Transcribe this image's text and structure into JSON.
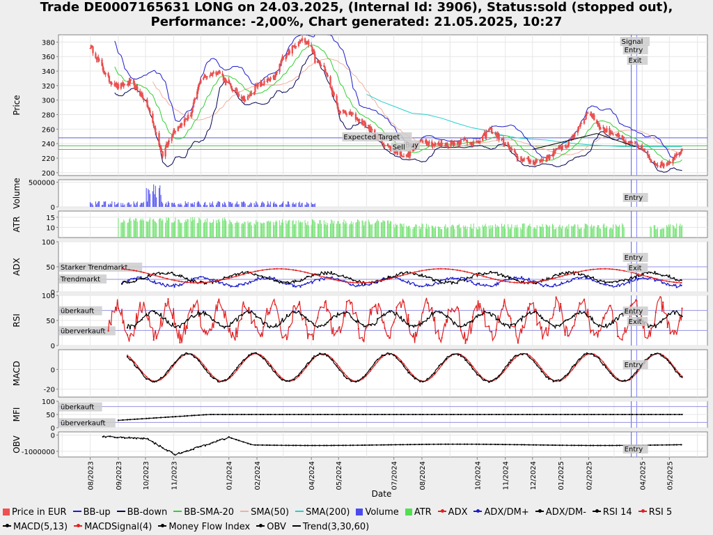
{
  "title_line1": "Trade DE0007165631 LONG on 24.03.2025, (Internal Id: 3906), Status:sold (stopped out),",
  "title_line2": "Performance: -2,00%, Chart generated: 21.05.2025, 10:27",
  "chart_data": {
    "type": "line",
    "xlabel": "Date",
    "x_ticks": [
      "08/2023",
      "09/2023",
      "10/2023",
      "11/2023",
      "01/2024",
      "02/2024",
      "04/2024",
      "05/2024",
      "07/2024",
      "08/2024",
      "10/2024",
      "11/2024",
      "12/2024",
      "01/2025",
      "02/2025",
      "04/2025",
      "05/2025"
    ],
    "price": {
      "ylabel": "Price",
      "yticks": [
        200,
        220,
        240,
        260,
        280,
        300,
        320,
        340,
        360,
        380
      ],
      "ylim": [
        196,
        390
      ],
      "dates": [
        "2023-08-01",
        "2023-08-10",
        "2023-08-20",
        "2023-09-01",
        "2023-09-15",
        "2023-10-01",
        "2023-10-10",
        "2023-10-20",
        "2023-11-01",
        "2023-11-20",
        "2023-12-01",
        "2023-12-20",
        "2024-01-05",
        "2024-01-20",
        "2024-02-01",
        "2024-02-20",
        "2024-03-01",
        "2024-03-10",
        "2024-03-20",
        "2024-04-01",
        "2024-04-05",
        "2024-04-15",
        "2024-05-01",
        "2024-05-15",
        "2024-06-01",
        "2024-06-15",
        "2024-07-01",
        "2024-07-15",
        "2024-08-01",
        "2024-08-15",
        "2024-09-01",
        "2024-09-15",
        "2024-10-01",
        "2024-10-15",
        "2024-11-01",
        "2024-11-15",
        "2024-12-01",
        "2024-12-15",
        "2025-01-01",
        "2025-01-10",
        "2025-01-20",
        "2025-02-01",
        "2025-02-15",
        "2025-03-01",
        "2025-03-15",
        "2025-03-24",
        "2025-04-01",
        "2025-04-08",
        "2025-04-20",
        "2025-05-01",
        "2025-05-15"
      ],
      "close": [
        375,
        355,
        330,
        318,
        325,
        300,
        265,
        225,
        258,
        280,
        330,
        340,
        315,
        300,
        320,
        330,
        360,
        370,
        385,
        375,
        355,
        345,
        285,
        280,
        265,
        245,
        230,
        222,
        246,
        238,
        240,
        245,
        240,
        260,
        240,
        220,
        215,
        218,
        235,
        240,
        262,
        285,
        260,
        255,
        240,
        240,
        233,
        220,
        210,
        215,
        232
      ],
      "series_names": [
        "Price in EUR",
        "BB-up",
        "BB-down",
        "BB-SMA-20",
        "SMA(50)",
        "SMA(200)",
        "Trend(3,30,60)"
      ],
      "sma200_start": "2024-06-01",
      "sma200_values": [
        308,
        298,
        290,
        282,
        280,
        275,
        268,
        262,
        258,
        252,
        248,
        246,
        245,
        242,
        240,
        238,
        237,
        236,
        236,
        236,
        236,
        236
      ],
      "hlines": [
        {
          "y": 248,
          "color": "#5a5ae0"
        },
        {
          "y": 237,
          "color": "#40c040"
        },
        {
          "y": 232,
          "color": "#e07070"
        }
      ],
      "annotations": [
        "Expected Target",
        "Buy",
        "Sell",
        "Signal",
        "Entry",
        "Exit"
      ]
    },
    "volume": {
      "ylabel": "Volume",
      "yticks": [
        0,
        500000
      ],
      "ylim": [
        0,
        550000
      ]
    },
    "atr": {
      "ylabel": "ATR",
      "yticks": [
        10,
        15
      ],
      "ylim": [
        5,
        18
      ]
    },
    "adx": {
      "ylabel": "ADX",
      "yticks": [
        0,
        50,
        100
      ],
      "ylim": [
        0,
        100
      ],
      "series": [
        "ADX",
        "ADX/DM+",
        "ADX/DM-"
      ],
      "lines": [
        {
          "y": 50,
          "label": "Starker Trendmarkt"
        },
        {
          "y": 25,
          "label": "Trendmarkt"
        }
      ]
    },
    "rsi": {
      "ylabel": "RSI",
      "yticks": [
        0,
        50,
        100
      ],
      "ylim": [
        0,
        100
      ],
      "series": [
        "RSI 14",
        "RSI 5"
      ],
      "lines": [
        {
          "y": 70,
          "label": "überkauft"
        },
        {
          "y": 30,
          "label": "überverkauft"
        }
      ]
    },
    "macd": {
      "ylabel": "MACD",
      "yticks": [
        -20,
        0
      ],
      "ylim": [
        -28,
        20
      ],
      "series": [
        "MACD(5,13)",
        "MACDSignal(4)"
      ]
    },
    "mfi": {
      "ylabel": "MFI",
      "yticks": [
        0,
        50,
        100
      ],
      "ylim": [
        0,
        100
      ],
      "series": [
        "Money Flow Index"
      ],
      "lines": [
        {
          "y": 80,
          "label": "überkauft"
        },
        {
          "y": 20,
          "label": "überverkauft"
        }
      ]
    },
    "obv": {
      "ylabel": "OBV",
      "yticks": [
        -1000000,
        0
      ],
      "ylim": [
        -1350000,
        200000
      ],
      "series": [
        "OBV"
      ]
    },
    "markers": {
      "signal_entry_date": "2025-03-20",
      "exit_date": "2025-03-26"
    }
  },
  "legend": [
    {
      "label": "Price in EUR",
      "color": "#f05050",
      "kind": "box"
    },
    {
      "label": "BB-up",
      "color": "#1a1acc",
      "kind": "line"
    },
    {
      "label": "BB-down",
      "color": "#000050",
      "kind": "line"
    },
    {
      "label": "BB-SMA-20",
      "color": "#30d030",
      "kind": "line"
    },
    {
      "label": "SMA(50)",
      "color": "#f0b0a0",
      "kind": "line"
    },
    {
      "label": "SMA(200)",
      "color": "#20d0d0",
      "kind": "line"
    },
    {
      "label": "Volume",
      "color": "#4a4af0",
      "kind": "box"
    },
    {
      "label": "ATR",
      "color": "#50e050",
      "kind": "box"
    },
    {
      "label": "ADX",
      "color": "#e02020",
      "kind": "dot"
    },
    {
      "label": "ADX/DM+",
      "color": "#1a1acc",
      "kind": "dot"
    },
    {
      "label": "ADX/DM-",
      "color": "#000000",
      "kind": "dot"
    },
    {
      "label": "RSI 14",
      "color": "#000000",
      "kind": "dot"
    },
    {
      "label": "RSI 5",
      "color": "#e02020",
      "kind": "dot"
    },
    {
      "label": "MACD(5,13)",
      "color": "#000000",
      "kind": "dot"
    },
    {
      "label": "MACDSignal(4)",
      "color": "#e02020",
      "kind": "dot"
    },
    {
      "label": "Money Flow Index",
      "color": "#000000",
      "kind": "dot"
    },
    {
      "label": "OBV",
      "color": "#000000",
      "kind": "dot"
    },
    {
      "label": "Trend(3,30,60)",
      "color": "#000000",
      "kind": "line"
    }
  ]
}
